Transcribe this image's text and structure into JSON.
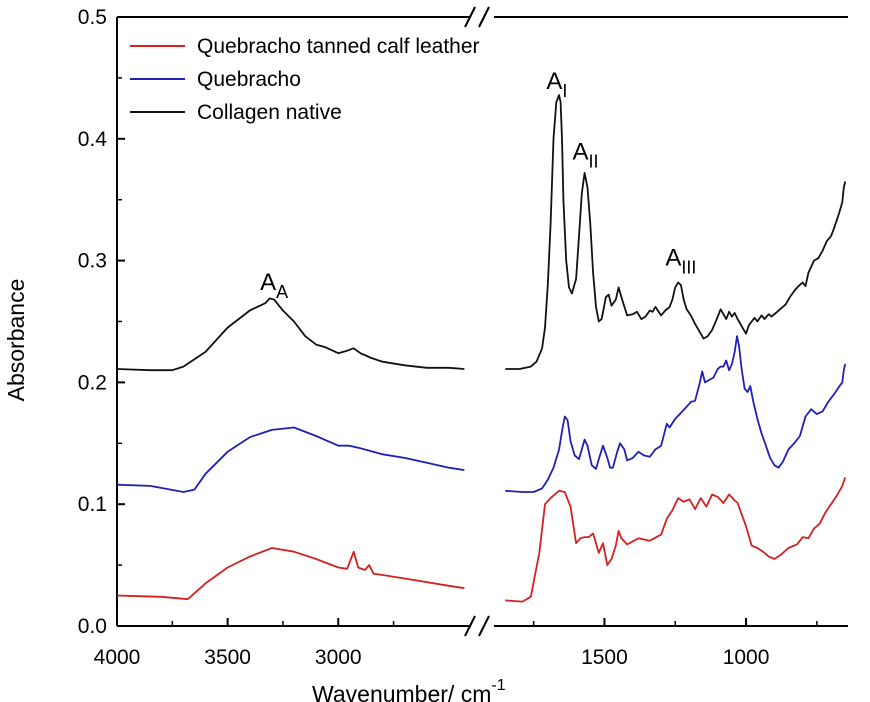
{
  "chart_data": {
    "type": "line",
    "title": "",
    "xlabel": "Wavenumber/ cm",
    "xlabel_sup": "-1",
    "ylabel": "Absorbance",
    "ylim": [
      0.0,
      0.5
    ],
    "x_break": {
      "left_segment": [
        4000,
        2400
      ],
      "right_segment": [
        1890,
        640
      ],
      "marks": "//"
    },
    "x_ticks": [
      "4000",
      "3500",
      "3000",
      "1500",
      "1000"
    ],
    "y_ticks": [
      "0.0",
      "0.1",
      "0.2",
      "0.3",
      "0.4",
      "0.5"
    ],
    "legend_position": "top-left",
    "series": [
      {
        "name": "Quebracho tanned calf leather",
        "color": "#d42020",
        "points": [
          [
            4000,
            0.025
          ],
          [
            3800,
            0.024
          ],
          [
            3680,
            0.022
          ],
          [
            3600,
            0.035
          ],
          [
            3500,
            0.048
          ],
          [
            3400,
            0.057
          ],
          [
            3300,
            0.064
          ],
          [
            3200,
            0.061
          ],
          [
            3100,
            0.055
          ],
          [
            3000,
            0.048
          ],
          [
            2960,
            0.047
          ],
          [
            2930,
            0.061
          ],
          [
            2910,
            0.048
          ],
          [
            2880,
            0.046
          ],
          [
            2860,
            0.05
          ],
          [
            2840,
            0.043
          ],
          [
            2700,
            0.039
          ],
          [
            2500,
            0.033
          ],
          [
            2430,
            0.031
          ],
          [
            1850,
            0.021
          ],
          [
            1790,
            0.02
          ],
          [
            1760,
            0.024
          ],
          [
            1730,
            0.06
          ],
          [
            1710,
            0.1
          ],
          [
            1690,
            0.105
          ],
          [
            1660,
            0.111
          ],
          [
            1640,
            0.11
          ],
          [
            1620,
            0.098
          ],
          [
            1600,
            0.068
          ],
          [
            1585,
            0.072
          ],
          [
            1570,
            0.073
          ],
          [
            1555,
            0.073
          ],
          [
            1540,
            0.076
          ],
          [
            1520,
            0.06
          ],
          [
            1505,
            0.068
          ],
          [
            1490,
            0.05
          ],
          [
            1475,
            0.055
          ],
          [
            1460,
            0.066
          ],
          [
            1450,
            0.078
          ],
          [
            1440,
            0.072
          ],
          [
            1420,
            0.067
          ],
          [
            1380,
            0.072
          ],
          [
            1340,
            0.07
          ],
          [
            1300,
            0.075
          ],
          [
            1280,
            0.088
          ],
          [
            1260,
            0.095
          ],
          [
            1240,
            0.105
          ],
          [
            1220,
            0.102
          ],
          [
            1200,
            0.104
          ],
          [
            1180,
            0.096
          ],
          [
            1160,
            0.105
          ],
          [
            1140,
            0.098
          ],
          [
            1120,
            0.108
          ],
          [
            1100,
            0.106
          ],
          [
            1080,
            0.101
          ],
          [
            1060,
            0.108
          ],
          [
            1040,
            0.103
          ],
          [
            1030,
            0.101
          ],
          [
            1000,
            0.082
          ],
          [
            980,
            0.066
          ],
          [
            960,
            0.064
          ],
          [
            940,
            0.061
          ],
          [
            920,
            0.057
          ],
          [
            900,
            0.055
          ],
          [
            880,
            0.058
          ],
          [
            850,
            0.064
          ],
          [
            820,
            0.067
          ],
          [
            800,
            0.073
          ],
          [
            780,
            0.072
          ],
          [
            760,
            0.08
          ],
          [
            740,
            0.084
          ],
          [
            720,
            0.093
          ],
          [
            700,
            0.1
          ],
          [
            680,
            0.107
          ],
          [
            660,
            0.115
          ],
          [
            650,
            0.122
          ]
        ]
      },
      {
        "name": "Quebracho",
        "color": "#2020b4",
        "points": [
          [
            4000,
            0.116
          ],
          [
            3850,
            0.115
          ],
          [
            3700,
            0.11
          ],
          [
            3650,
            0.112
          ],
          [
            3600,
            0.125
          ],
          [
            3500,
            0.143
          ],
          [
            3400,
            0.155
          ],
          [
            3300,
            0.161
          ],
          [
            3200,
            0.163
          ],
          [
            3100,
            0.156
          ],
          [
            3000,
            0.148
          ],
          [
            2950,
            0.148
          ],
          [
            2900,
            0.146
          ],
          [
            2800,
            0.141
          ],
          [
            2700,
            0.138
          ],
          [
            2600,
            0.134
          ],
          [
            2500,
            0.13
          ],
          [
            2430,
            0.128
          ],
          [
            1850,
            0.111
          ],
          [
            1790,
            0.11
          ],
          [
            1750,
            0.11
          ],
          [
            1720,
            0.113
          ],
          [
            1700,
            0.12
          ],
          [
            1680,
            0.13
          ],
          [
            1660,
            0.145
          ],
          [
            1650,
            0.16
          ],
          [
            1640,
            0.172
          ],
          [
            1630,
            0.169
          ],
          [
            1620,
            0.152
          ],
          [
            1605,
            0.14
          ],
          [
            1590,
            0.137
          ],
          [
            1580,
            0.145
          ],
          [
            1570,
            0.153
          ],
          [
            1560,
            0.148
          ],
          [
            1545,
            0.132
          ],
          [
            1530,
            0.129
          ],
          [
            1520,
            0.137
          ],
          [
            1505,
            0.148
          ],
          [
            1490,
            0.138
          ],
          [
            1480,
            0.13
          ],
          [
            1470,
            0.13
          ],
          [
            1455,
            0.143
          ],
          [
            1445,
            0.15
          ],
          [
            1430,
            0.145
          ],
          [
            1420,
            0.136
          ],
          [
            1400,
            0.138
          ],
          [
            1380,
            0.143
          ],
          [
            1360,
            0.14
          ],
          [
            1340,
            0.139
          ],
          [
            1320,
            0.145
          ],
          [
            1300,
            0.148
          ],
          [
            1280,
            0.166
          ],
          [
            1270,
            0.163
          ],
          [
            1250,
            0.17
          ],
          [
            1230,
            0.175
          ],
          [
            1210,
            0.18
          ],
          [
            1195,
            0.184
          ],
          [
            1180,
            0.185
          ],
          [
            1165,
            0.198
          ],
          [
            1155,
            0.209
          ],
          [
            1145,
            0.2
          ],
          [
            1130,
            0.202
          ],
          [
            1115,
            0.204
          ],
          [
            1100,
            0.211
          ],
          [
            1090,
            0.213
          ],
          [
            1080,
            0.213
          ],
          [
            1070,
            0.218
          ],
          [
            1060,
            0.21
          ],
          [
            1050,
            0.215
          ],
          [
            1040,
            0.225
          ],
          [
            1032,
            0.238
          ],
          [
            1025,
            0.23
          ],
          [
            1015,
            0.21
          ],
          [
            1005,
            0.195
          ],
          [
            995,
            0.192
          ],
          [
            985,
            0.197
          ],
          [
            975,
            0.185
          ],
          [
            960,
            0.17
          ],
          [
            945,
            0.158
          ],
          [
            930,
            0.148
          ],
          [
            915,
            0.138
          ],
          [
            900,
            0.132
          ],
          [
            885,
            0.13
          ],
          [
            870,
            0.135
          ],
          [
            850,
            0.145
          ],
          [
            830,
            0.15
          ],
          [
            810,
            0.156
          ],
          [
            790,
            0.172
          ],
          [
            770,
            0.178
          ],
          [
            750,
            0.174
          ],
          [
            730,
            0.176
          ],
          [
            710,
            0.184
          ],
          [
            690,
            0.19
          ],
          [
            670,
            0.197
          ],
          [
            660,
            0.2
          ],
          [
            655,
            0.21
          ],
          [
            650,
            0.215
          ]
        ]
      },
      {
        "name": "Collagen native",
        "color": "#111111",
        "points": [
          [
            4000,
            0.211
          ],
          [
            3850,
            0.21
          ],
          [
            3750,
            0.21
          ],
          [
            3700,
            0.213
          ],
          [
            3600,
            0.225
          ],
          [
            3500,
            0.245
          ],
          [
            3400,
            0.259
          ],
          [
            3330,
            0.265
          ],
          [
            3310,
            0.269
          ],
          [
            3290,
            0.268
          ],
          [
            3250,
            0.259
          ],
          [
            3200,
            0.25
          ],
          [
            3150,
            0.238
          ],
          [
            3100,
            0.231
          ],
          [
            3060,
            0.229
          ],
          [
            3000,
            0.224
          ],
          [
            2960,
            0.226
          ],
          [
            2930,
            0.228
          ],
          [
            2900,
            0.224
          ],
          [
            2850,
            0.22
          ],
          [
            2800,
            0.217
          ],
          [
            2700,
            0.214
          ],
          [
            2600,
            0.212
          ],
          [
            2500,
            0.212
          ],
          [
            2430,
            0.211
          ],
          [
            1850,
            0.211
          ],
          [
            1800,
            0.211
          ],
          [
            1760,
            0.213
          ],
          [
            1740,
            0.217
          ],
          [
            1720,
            0.228
          ],
          [
            1710,
            0.245
          ],
          [
            1700,
            0.28
          ],
          [
            1690,
            0.33
          ],
          [
            1680,
            0.4
          ],
          [
            1670,
            0.43
          ],
          [
            1660,
            0.436
          ],
          [
            1655,
            0.43
          ],
          [
            1650,
            0.4
          ],
          [
            1645,
            0.35
          ],
          [
            1635,
            0.3
          ],
          [
            1625,
            0.278
          ],
          [
            1615,
            0.273
          ],
          [
            1600,
            0.285
          ],
          [
            1590,
            0.32
          ],
          [
            1580,
            0.355
          ],
          [
            1570,
            0.372
          ],
          [
            1560,
            0.36
          ],
          [
            1550,
            0.33
          ],
          [
            1540,
            0.29
          ],
          [
            1530,
            0.262
          ],
          [
            1520,
            0.25
          ],
          [
            1510,
            0.252
          ],
          [
            1495,
            0.27
          ],
          [
            1485,
            0.272
          ],
          [
            1475,
            0.263
          ],
          [
            1460,
            0.268
          ],
          [
            1450,
            0.278
          ],
          [
            1440,
            0.27
          ],
          [
            1420,
            0.255
          ],
          [
            1400,
            0.256
          ],
          [
            1385,
            0.258
          ],
          [
            1370,
            0.252
          ],
          [
            1355,
            0.254
          ],
          [
            1340,
            0.259
          ],
          [
            1330,
            0.258
          ],
          [
            1320,
            0.262
          ],
          [
            1300,
            0.255
          ],
          [
            1285,
            0.259
          ],
          [
            1270,
            0.262
          ],
          [
            1260,
            0.268
          ],
          [
            1250,
            0.278
          ],
          [
            1240,
            0.282
          ],
          [
            1230,
            0.28
          ],
          [
            1220,
            0.268
          ],
          [
            1210,
            0.26
          ],
          [
            1195,
            0.255
          ],
          [
            1180,
            0.248
          ],
          [
            1165,
            0.242
          ],
          [
            1150,
            0.236
          ],
          [
            1135,
            0.238
          ],
          [
            1120,
            0.243
          ],
          [
            1105,
            0.251
          ],
          [
            1090,
            0.26
          ],
          [
            1080,
            0.256
          ],
          [
            1070,
            0.252
          ],
          [
            1060,
            0.258
          ],
          [
            1050,
            0.254
          ],
          [
            1040,
            0.257
          ],
          [
            1030,
            0.252
          ],
          [
            1020,
            0.248
          ],
          [
            1010,
            0.244
          ],
          [
            1000,
            0.24
          ],
          [
            990,
            0.247
          ],
          [
            980,
            0.25
          ],
          [
            970,
            0.253
          ],
          [
            960,
            0.25
          ],
          [
            945,
            0.255
          ],
          [
            935,
            0.252
          ],
          [
            920,
            0.256
          ],
          [
            910,
            0.254
          ],
          [
            895,
            0.257
          ],
          [
            880,
            0.26
          ],
          [
            860,
            0.264
          ],
          [
            845,
            0.27
          ],
          [
            830,
            0.275
          ],
          [
            815,
            0.279
          ],
          [
            800,
            0.282
          ],
          [
            790,
            0.279
          ],
          [
            780,
            0.29
          ],
          [
            770,
            0.295
          ],
          [
            760,
            0.3
          ],
          [
            745,
            0.302
          ],
          [
            730,
            0.308
          ],
          [
            715,
            0.316
          ],
          [
            700,
            0.32
          ],
          [
            690,
            0.326
          ],
          [
            680,
            0.333
          ],
          [
            670,
            0.34
          ],
          [
            660,
            0.348
          ],
          [
            655,
            0.36
          ],
          [
            650,
            0.365
          ]
        ]
      }
    ],
    "peak_labels": [
      {
        "base": "A",
        "sub": "A",
        "x": 3290,
        "y": 0.276
      },
      {
        "base": "A",
        "sub": "I",
        "x": 1668,
        "y": 0.441
      },
      {
        "base": "A",
        "sub": "II",
        "x": 1567,
        "y": 0.383
      },
      {
        "base": "A",
        "sub": "III",
        "x": 1230,
        "y": 0.296
      }
    ]
  }
}
